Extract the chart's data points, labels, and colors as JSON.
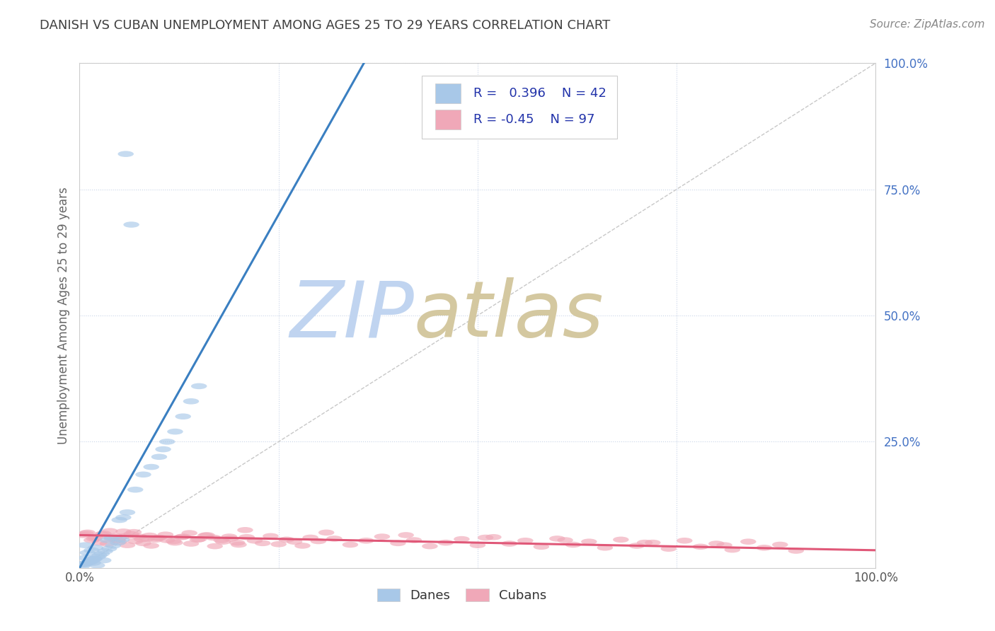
{
  "title": "DANISH VS CUBAN UNEMPLOYMENT AMONG AGES 25 TO 29 YEARS CORRELATION CHART",
  "source": "Source: ZipAtlas.com",
  "ylabel": "Unemployment Among Ages 25 to 29 years",
  "xlim": [
    0,
    1
  ],
  "ylim": [
    0,
    1
  ],
  "danes_R": 0.396,
  "danes_N": 42,
  "cubans_R": -0.45,
  "cubans_N": 97,
  "blue_color": "#a8c8e8",
  "pink_color": "#f0a8b8",
  "blue_line_color": "#3a7fc1",
  "pink_line_color": "#e05878",
  "diagonal_color": "#c8c8c8",
  "grid_color": "#c8d4e8",
  "title_color": "#404040",
  "source_color": "#888888",
  "ytick_color": "#4472c4",
  "xtick_color": "#555555",
  "legend_text_color": "#2233aa",
  "watermark_zip_color": "#c0d4f0",
  "watermark_atlas_color": "#d4c8a0",
  "background_color": "#ffffff",
  "legend_border_color": "#cccccc",
  "spine_color": "#cccccc",
  "danes_x": [
    0.017,
    0.022,
    0.008,
    0.03,
    0.005,
    0.012,
    0.018,
    0.025,
    0.01,
    0.015,
    0.02,
    0.007,
    0.035,
    0.04,
    0.05,
    0.055,
    0.06,
    0.07,
    0.08,
    0.09,
    0.1,
    0.105,
    0.11,
    0.12,
    0.13,
    0.14,
    0.15,
    0.003,
    0.006,
    0.009,
    0.013,
    0.016,
    0.019,
    0.023,
    0.028,
    0.032,
    0.037,
    0.042,
    0.048,
    0.053,
    0.058,
    0.065
  ],
  "danes_y": [
    0.01,
    0.005,
    0.02,
    0.015,
    0.008,
    0.012,
    0.018,
    0.025,
    0.03,
    0.035,
    0.04,
    0.045,
    0.055,
    0.06,
    0.095,
    0.1,
    0.11,
    0.155,
    0.185,
    0.2,
    0.22,
    0.235,
    0.25,
    0.27,
    0.3,
    0.33,
    0.36,
    0.003,
    0.007,
    0.01,
    0.012,
    0.015,
    0.018,
    0.022,
    0.028,
    0.033,
    0.038,
    0.044,
    0.05,
    0.056,
    0.82,
    0.68
  ],
  "cubans_x": [
    0.005,
    0.01,
    0.015,
    0.02,
    0.025,
    0.03,
    0.035,
    0.04,
    0.045,
    0.05,
    0.055,
    0.06,
    0.065,
    0.07,
    0.075,
    0.08,
    0.085,
    0.09,
    0.095,
    0.1,
    0.11,
    0.12,
    0.13,
    0.14,
    0.15,
    0.16,
    0.17,
    0.18,
    0.19,
    0.2,
    0.21,
    0.22,
    0.23,
    0.24,
    0.25,
    0.26,
    0.27,
    0.28,
    0.29,
    0.3,
    0.32,
    0.34,
    0.36,
    0.38,
    0.4,
    0.42,
    0.44,
    0.46,
    0.48,
    0.5,
    0.52,
    0.54,
    0.56,
    0.58,
    0.6,
    0.62,
    0.64,
    0.66,
    0.68,
    0.7,
    0.72,
    0.74,
    0.76,
    0.78,
    0.8,
    0.82,
    0.84,
    0.86,
    0.88,
    0.9,
    0.008,
    0.018,
    0.028,
    0.038,
    0.048,
    0.058,
    0.068,
    0.078,
    0.088,
    0.098,
    0.108,
    0.118,
    0.128,
    0.138,
    0.148,
    0.158,
    0.168,
    0.178,
    0.188,
    0.198,
    0.208,
    0.31,
    0.41,
    0.51,
    0.61,
    0.71,
    0.81
  ],
  "cubans_y": [
    0.065,
    0.07,
    0.055,
    0.06,
    0.05,
    0.068,
    0.048,
    0.058,
    0.063,
    0.052,
    0.072,
    0.045,
    0.067,
    0.053,
    0.062,
    0.049,
    0.058,
    0.044,
    0.056,
    0.06,
    0.055,
    0.05,
    0.062,
    0.048,
    0.057,
    0.065,
    0.043,
    0.052,
    0.058,
    0.046,
    0.061,
    0.054,
    0.049,
    0.063,
    0.047,
    0.056,
    0.052,
    0.044,
    0.06,
    0.053,
    0.058,
    0.046,
    0.054,
    0.062,
    0.049,
    0.055,
    0.043,
    0.05,
    0.057,
    0.045,
    0.061,
    0.048,
    0.054,
    0.042,
    0.058,
    0.046,
    0.052,
    0.04,
    0.056,
    0.044,
    0.05,
    0.038,
    0.054,
    0.042,
    0.048,
    0.036,
    0.052,
    0.04,
    0.046,
    0.034,
    0.068,
    0.058,
    0.066,
    0.073,
    0.055,
    0.063,
    0.071,
    0.057,
    0.064,
    0.059,
    0.066,
    0.053,
    0.061,
    0.069,
    0.056,
    0.064,
    0.06,
    0.055,
    0.062,
    0.05,
    0.075,
    0.07,
    0.065,
    0.06,
    0.055,
    0.05,
    0.045
  ],
  "danes_slope": 2.8,
  "danes_intercept": 0.0,
  "cubans_slope": -0.03,
  "cubans_intercept": 0.065
}
